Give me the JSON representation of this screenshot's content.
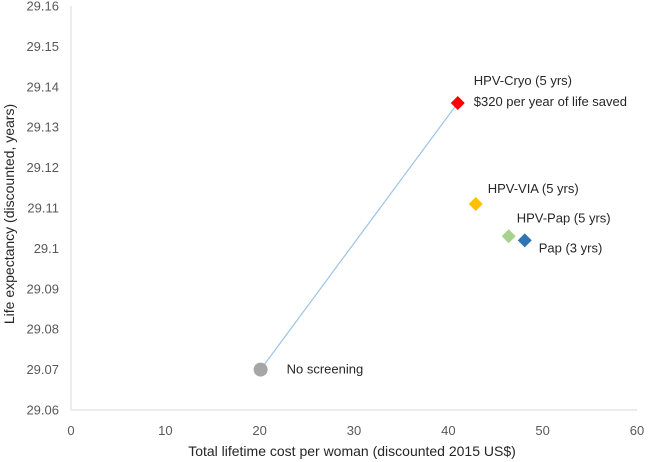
{
  "chart_data": {
    "type": "scatter",
    "title": "",
    "xlabel": "Total lifetime cost per woman (discounted 2015 US$)",
    "ylabel": "Life expectancy (discounted, years)",
    "xlim": [
      0,
      60
    ],
    "ylim": [
      29.06,
      29.16
    ],
    "x_ticks": [
      0,
      10,
      20,
      30,
      40,
      50,
      60
    ],
    "y_ticks": [
      29.06,
      29.07,
      29.08,
      29.09,
      29.1,
      29.11,
      29.12,
      29.13,
      29.14,
      29.15,
      29.16
    ],
    "y_tick_labels": [
      "29.06",
      "29.07",
      "29.08",
      "29.09",
      "29.1",
      "29.11",
      "29.12",
      "29.13",
      "29.14",
      "29.15",
      "29.16"
    ],
    "grid": false,
    "points": [
      {
        "label": "No screening",
        "x": 20.1,
        "y": 29.07,
        "color": "#a6a6a6",
        "marker": "circle"
      },
      {
        "label": "HPV-Cryo (5 yrs)",
        "x": 41.0,
        "y": 29.136,
        "color": "#ff0000",
        "marker": "diamond",
        "annotation": "$320 per year of life saved"
      },
      {
        "label": "HPV-VIA (5 yrs)",
        "x": 42.9,
        "y": 29.111,
        "color": "#ffc000",
        "marker": "diamond"
      },
      {
        "label": "HPV-Pap (5 yrs)",
        "x": 46.4,
        "y": 29.103,
        "color": "#a9d18e",
        "marker": "diamond"
      },
      {
        "label": "Pap (3 yrs)",
        "x": 48.1,
        "y": 29.102,
        "color": "#2e75b6",
        "marker": "diamond"
      }
    ],
    "frontier": {
      "from": "No screening",
      "to": "HPV-Cryo (5 yrs)",
      "color": "#9dc3e6"
    }
  }
}
